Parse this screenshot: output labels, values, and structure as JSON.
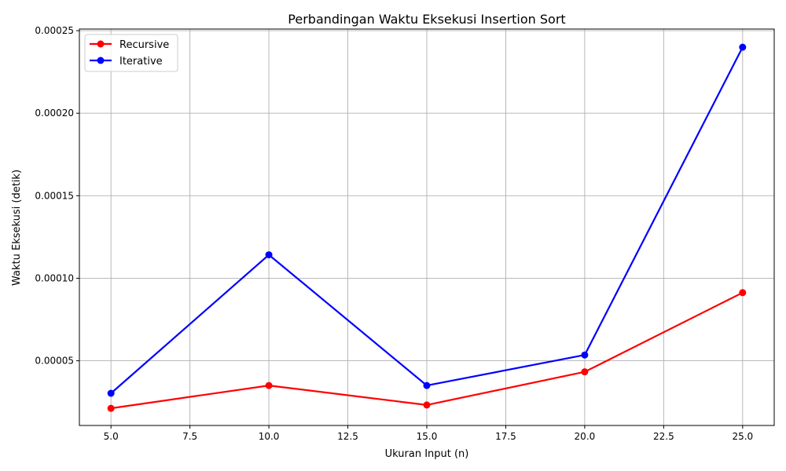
{
  "chart_data": {
    "type": "line",
    "title": "Perbandingan Waktu Eksekusi Insertion Sort",
    "xlabel": "Ukuran Input (n)",
    "ylabel": "Waktu Eksekusi (detik)",
    "x": [
      5,
      10,
      15,
      20,
      25
    ],
    "xlim": [
      4,
      26
    ],
    "ylim": [
      1.08e-05,
      0.000251
    ],
    "x_ticks": [
      "5.0",
      "7.5",
      "10.0",
      "12.5",
      "15.0",
      "17.5",
      "20.0",
      "22.5",
      "25.0"
    ],
    "y_ticks": [
      "0.00005",
      "0.00010",
      "0.00015",
      "0.00020",
      "0.00025"
    ],
    "grid": true,
    "legend_position": "top-left",
    "series": [
      {
        "name": "Recursive",
        "color": "#ff0000",
        "marker": "circle",
        "values": [
          2.12e-05,
          3.5e-05,
          2.32e-05,
          4.33e-05,
          9.13e-05
        ]
      },
      {
        "name": "Iterative",
        "color": "#0000ff",
        "marker": "circle",
        "values": [
          3.03e-05,
          0.0001142,
          3.5e-05,
          5.35e-05,
          0.00024
        ]
      }
    ]
  }
}
